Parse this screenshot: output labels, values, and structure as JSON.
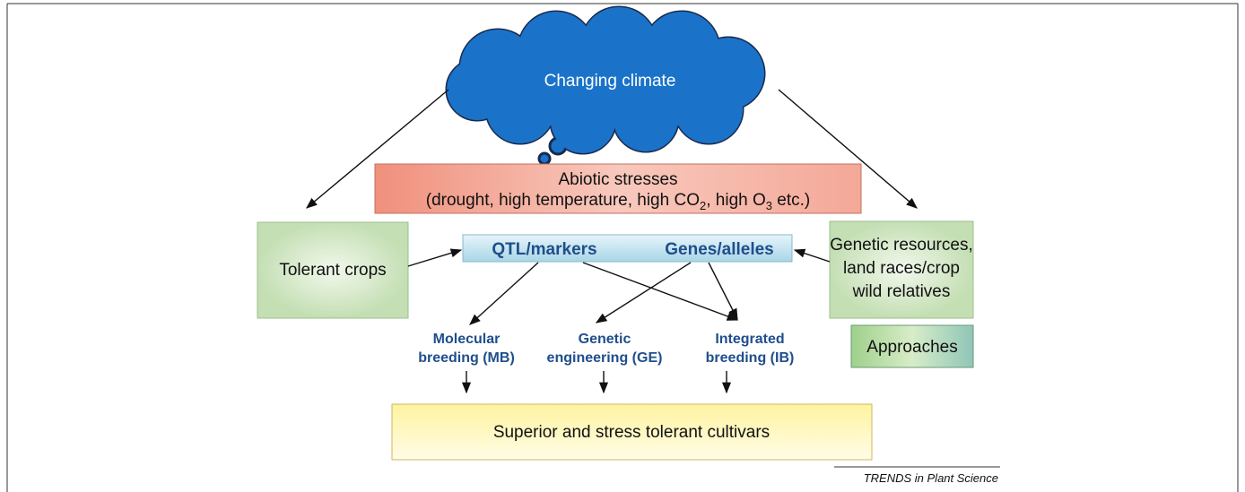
{
  "cloud": "Changing climate",
  "stresses": {
    "title": "Abiotic stresses",
    "detail": [
      "(drought, high temperature, high CO",
      "2",
      ", high O",
      "3",
      " etc.)"
    ]
  },
  "tolerant_crops": "Tolerant crops",
  "markers": {
    "qtl": "QTL/markers",
    "genes": "Genes/alleles"
  },
  "genetic_resources": [
    "Genetic resources,",
    "land races/crop",
    "wild relatives"
  ],
  "approaches": {
    "legend": "Approaches",
    "items": [
      [
        "Molecular",
        "breeding (MB)"
      ],
      [
        "Genetic",
        "engineering (GE)"
      ],
      [
        "Integrated",
        "breeding (IB)"
      ]
    ]
  },
  "outcome": "Superior and stress tolerant cultivars",
  "footer": "TRENDS in Plant Science"
}
